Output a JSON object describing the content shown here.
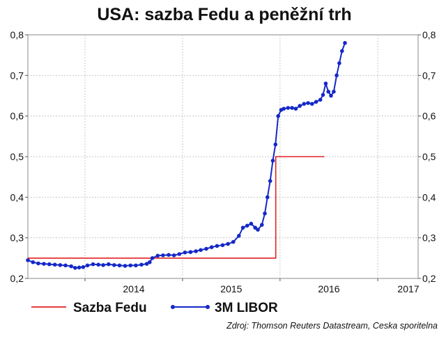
{
  "chart_data": {
    "type": "line",
    "title": "USA: sazba Fedu a peněžní trh",
    "source": "Zdroj: Thomson Reuters Datastream, Ceska sporitelna",
    "ylim": [
      0.2,
      0.8
    ],
    "yticks": [
      "0,2",
      "0,3",
      "0,4",
      "0,5",
      "0,6",
      "0,7",
      "0,8"
    ],
    "xlim": [
      "2013-06-01",
      "2017-06-01"
    ],
    "xticks": [
      {
        "label": "2014",
        "date": "2014-01-01"
      },
      {
        "label": "2015",
        "date": "2015-01-01"
      },
      {
        "label": "2016",
        "date": "2016-01-01"
      },
      {
        "label": "2017",
        "date": "2017-01-01"
      }
    ],
    "grid": true,
    "legend_position": "bottom",
    "series": [
      {
        "name": "Sazba Fedu",
        "color": "#e02020",
        "marker": false,
        "points": [
          [
            "2013-06-01",
            0.25
          ],
          [
            "2015-12-16",
            0.25
          ],
          [
            "2015-12-16",
            0.5
          ],
          [
            "2016-06-15",
            0.5
          ]
        ]
      },
      {
        "name": "3M LIBOR",
        "color": "#1428c8",
        "marker": true,
        "points": [
          [
            "2013-06-01",
            0.245
          ],
          [
            "2013-06-20",
            0.24
          ],
          [
            "2013-07-10",
            0.237
          ],
          [
            "2013-07-31",
            0.236
          ],
          [
            "2013-08-20",
            0.235
          ],
          [
            "2013-09-10",
            0.234
          ],
          [
            "2013-09-30",
            0.233
          ],
          [
            "2013-10-20",
            0.232
          ],
          [
            "2013-11-10",
            0.23
          ],
          [
            "2013-11-25",
            0.226
          ],
          [
            "2013-12-10",
            0.227
          ],
          [
            "2013-12-25",
            0.228
          ],
          [
            "2014-01-10",
            0.232
          ],
          [
            "2014-01-31",
            0.235
          ],
          [
            "2014-02-20",
            0.234
          ],
          [
            "2014-03-10",
            0.233
          ],
          [
            "2014-03-30",
            0.235
          ],
          [
            "2014-04-20",
            0.233
          ],
          [
            "2014-05-10",
            0.232
          ],
          [
            "2014-05-31",
            0.231
          ],
          [
            "2014-06-20",
            0.232
          ],
          [
            "2014-07-10",
            0.232
          ],
          [
            "2014-07-31",
            0.234
          ],
          [
            "2014-08-20",
            0.236
          ],
          [
            "2014-08-31",
            0.24
          ],
          [
            "2014-09-10",
            0.25
          ],
          [
            "2014-09-30",
            0.256
          ],
          [
            "2014-10-20",
            0.257
          ],
          [
            "2014-11-10",
            0.258
          ],
          [
            "2014-11-30",
            0.257
          ],
          [
            "2014-12-20",
            0.26
          ],
          [
            "2015-01-10",
            0.264
          ],
          [
            "2015-01-31",
            0.265
          ],
          [
            "2015-02-20",
            0.267
          ],
          [
            "2015-03-10",
            0.27
          ],
          [
            "2015-03-31",
            0.273
          ],
          [
            "2015-04-20",
            0.277
          ],
          [
            "2015-05-10",
            0.28
          ],
          [
            "2015-05-31",
            0.282
          ],
          [
            "2015-06-20",
            0.285
          ],
          [
            "2015-07-10",
            0.29
          ],
          [
            "2015-07-31",
            0.305
          ],
          [
            "2015-08-15",
            0.325
          ],
          [
            "2015-08-31",
            0.33
          ],
          [
            "2015-09-15",
            0.335
          ],
          [
            "2015-09-30",
            0.325
          ],
          [
            "2015-10-10",
            0.32
          ],
          [
            "2015-10-25",
            0.332
          ],
          [
            "2015-11-05",
            0.36
          ],
          [
            "2015-11-15",
            0.4
          ],
          [
            "2015-11-25",
            0.44
          ],
          [
            "2015-12-05",
            0.49
          ],
          [
            "2015-12-15",
            0.53
          ],
          [
            "2015-12-25",
            0.6
          ],
          [
            "2016-01-05",
            0.615
          ],
          [
            "2016-01-15",
            0.618
          ],
          [
            "2016-01-31",
            0.62
          ],
          [
            "2016-02-15",
            0.62
          ],
          [
            "2016-02-29",
            0.618
          ],
          [
            "2016-03-15",
            0.625
          ],
          [
            "2016-03-31",
            0.63
          ],
          [
            "2016-04-15",
            0.632
          ],
          [
            "2016-04-30",
            0.63
          ],
          [
            "2016-05-15",
            0.635
          ],
          [
            "2016-05-31",
            0.64
          ],
          [
            "2016-06-10",
            0.652
          ],
          [
            "2016-06-20",
            0.68
          ],
          [
            "2016-06-30",
            0.66
          ],
          [
            "2016-07-10",
            0.65
          ],
          [
            "2016-07-20",
            0.66
          ],
          [
            "2016-07-31",
            0.7
          ],
          [
            "2016-08-10",
            0.73
          ],
          [
            "2016-08-20",
            0.76
          ],
          [
            "2016-08-31",
            0.78
          ]
        ]
      }
    ]
  }
}
